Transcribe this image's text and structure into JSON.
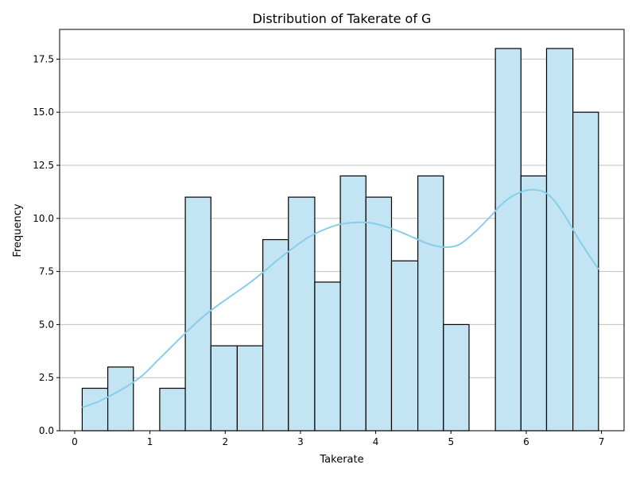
{
  "chart_data": {
    "type": "bar",
    "title": "Distribution of Takerate of G",
    "xlabel": "Takerate",
    "ylabel": "Frequency",
    "xlim": [
      -0.2,
      7.3
    ],
    "ylim": [
      0,
      18.9
    ],
    "grid": "y",
    "x_ticks": [
      {
        "value": 0,
        "label": "0"
      },
      {
        "value": 1,
        "label": "1"
      },
      {
        "value": 2,
        "label": "2"
      },
      {
        "value": 3,
        "label": "3"
      },
      {
        "value": 4,
        "label": "4"
      },
      {
        "value": 5,
        "label": "5"
      },
      {
        "value": 6,
        "label": "6"
      },
      {
        "value": 7,
        "label": "7"
      }
    ],
    "y_ticks": [
      {
        "value": 0,
        "label": "0.0"
      },
      {
        "value": 2.5,
        "label": "2.5"
      },
      {
        "value": 5,
        "label": "5.0"
      },
      {
        "value": 7.5,
        "label": "7.5"
      },
      {
        "value": 10,
        "label": "10.0"
      },
      {
        "value": 12.5,
        "label": "12.5"
      },
      {
        "value": 15,
        "label": "15.0"
      },
      {
        "value": 17.5,
        "label": "17.5"
      }
    ],
    "bins": [
      {
        "start": 0.1,
        "end": 0.44,
        "count": 2
      },
      {
        "start": 0.44,
        "end": 0.78,
        "count": 3
      },
      {
        "start": 0.78,
        "end": 1.13,
        "count": 0
      },
      {
        "start": 1.13,
        "end": 1.47,
        "count": 2
      },
      {
        "start": 1.47,
        "end": 1.81,
        "count": 11
      },
      {
        "start": 1.81,
        "end": 2.16,
        "count": 4
      },
      {
        "start": 2.16,
        "end": 2.5,
        "count": 4
      },
      {
        "start": 2.5,
        "end": 2.84,
        "count": 9
      },
      {
        "start": 2.84,
        "end": 3.19,
        "count": 11
      },
      {
        "start": 3.19,
        "end": 3.53,
        "count": 7
      },
      {
        "start": 3.53,
        "end": 3.87,
        "count": 12
      },
      {
        "start": 3.87,
        "end": 4.21,
        "count": 11
      },
      {
        "start": 4.21,
        "end": 4.56,
        "count": 8
      },
      {
        "start": 4.56,
        "end": 4.9,
        "count": 12
      },
      {
        "start": 4.9,
        "end": 5.24,
        "count": 5
      },
      {
        "start": 5.24,
        "end": 5.59,
        "count": 0
      },
      {
        "start": 5.59,
        "end": 5.93,
        "count": 18
      },
      {
        "start": 5.93,
        "end": 6.27,
        "count": 12
      },
      {
        "start": 6.27,
        "end": 6.62,
        "count": 18
      },
      {
        "start": 6.62,
        "end": 6.96,
        "count": 15
      }
    ],
    "kde": {
      "x": [
        0.1,
        0.3,
        0.5,
        0.7,
        0.9,
        1.1,
        1.3,
        1.5,
        1.7,
        1.9,
        2.1,
        2.3,
        2.5,
        2.7,
        2.9,
        3.1,
        3.3,
        3.5,
        3.7,
        3.9,
        4.1,
        4.3,
        4.5,
        4.7,
        4.9,
        5.1,
        5.3,
        5.5,
        5.7,
        5.9,
        6.1,
        6.3,
        6.5,
        6.7,
        6.96
      ],
      "y": [
        1.1,
        1.35,
        1.7,
        2.1,
        2.6,
        3.3,
        4.0,
        4.7,
        5.35,
        5.9,
        6.4,
        6.9,
        7.45,
        8.05,
        8.6,
        9.1,
        9.45,
        9.7,
        9.8,
        9.8,
        9.65,
        9.4,
        9.1,
        8.8,
        8.65,
        8.75,
        9.3,
        10.0,
        10.75,
        11.2,
        11.35,
        11.1,
        10.2,
        9.0,
        7.6
      ]
    },
    "colors": {
      "bar_fill": "#c3e4f3",
      "bar_edge": "#000000",
      "kde_line": "#87ceeb",
      "grid": "#c0c0c0"
    }
  }
}
